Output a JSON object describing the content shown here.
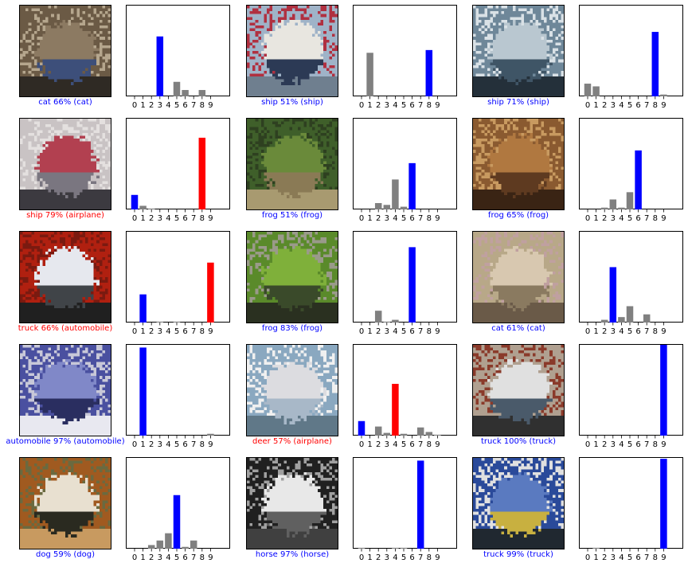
{
  "colors": {
    "correct": "#0000ff",
    "incorrect": "#ff0000",
    "other": "#808080",
    "frame": "#000000"
  },
  "class_ticks": [
    "0",
    "1",
    "2",
    "3",
    "4",
    "5",
    "6",
    "7",
    "8",
    "9"
  ],
  "chart_data": [
    {
      "type": "bar",
      "image": "cat-image",
      "caption": "cat 66% (cat)",
      "correct": true,
      "categories": [
        "0",
        "1",
        "2",
        "3",
        "4",
        "5",
        "6",
        "7",
        "8",
        "9"
      ],
      "values": [
        0.0,
        0.0,
        0.0,
        0.66,
        0.0,
        0.16,
        0.07,
        0.0,
        0.07,
        0.0
      ],
      "predicted": 3,
      "true": 3,
      "ylim": [
        0,
        1
      ]
    },
    {
      "type": "bar",
      "image": "ship-image",
      "caption": "ship 51% (ship)",
      "correct": true,
      "categories": [
        "0",
        "1",
        "2",
        "3",
        "4",
        "5",
        "6",
        "7",
        "8",
        "9"
      ],
      "values": [
        0.0,
        0.48,
        0.0,
        0.0,
        0.0,
        0.0,
        0.0,
        0.0,
        0.51,
        0.0
      ],
      "predicted": 8,
      "true": 8,
      "ylim": [
        0,
        1
      ]
    },
    {
      "type": "bar",
      "image": "boat-image",
      "caption": "ship 71% (ship)",
      "correct": true,
      "categories": [
        "0",
        "1",
        "2",
        "3",
        "4",
        "5",
        "6",
        "7",
        "8",
        "9"
      ],
      "values": [
        0.14,
        0.11,
        0.0,
        0.0,
        0.0,
        0.0,
        0.0,
        0.0,
        0.71,
        0.02
      ],
      "predicted": 8,
      "true": 8,
      "ylim": [
        0,
        1
      ]
    },
    {
      "type": "bar",
      "image": "airplane-book-image",
      "caption": "ship 79% (airplane)",
      "correct": false,
      "categories": [
        "0",
        "1",
        "2",
        "3",
        "4",
        "5",
        "6",
        "7",
        "8",
        "9"
      ],
      "values": [
        0.16,
        0.04,
        0.01,
        0.0,
        0.0,
        0.0,
        0.0,
        0.0,
        0.79,
        0.0
      ],
      "predicted": 8,
      "true": 0,
      "ylim": [
        0,
        1
      ]
    },
    {
      "type": "bar",
      "image": "frog-image",
      "caption": "frog 51% (frog)",
      "correct": true,
      "categories": [
        "0",
        "1",
        "2",
        "3",
        "4",
        "5",
        "6",
        "7",
        "8",
        "9"
      ],
      "values": [
        0.0,
        0.0,
        0.07,
        0.05,
        0.33,
        0.03,
        0.51,
        0.0,
        0.0,
        0.0
      ],
      "predicted": 6,
      "true": 6,
      "ylim": [
        0,
        1
      ]
    },
    {
      "type": "bar",
      "image": "frog-image-2",
      "caption": "frog 65% (frog)",
      "correct": true,
      "categories": [
        "0",
        "1",
        "2",
        "3",
        "4",
        "5",
        "6",
        "7",
        "8",
        "9"
      ],
      "values": [
        0.0,
        0.0,
        0.02,
        0.11,
        0.02,
        0.19,
        0.65,
        0.0,
        0.0,
        0.0
      ],
      "predicted": 6,
      "true": 6,
      "ylim": [
        0,
        1
      ]
    },
    {
      "type": "bar",
      "image": "automobile-image",
      "caption": "truck 66% (automobile)",
      "correct": false,
      "categories": [
        "0",
        "1",
        "2",
        "3",
        "4",
        "5",
        "6",
        "7",
        "8",
        "9"
      ],
      "values": [
        0.0,
        0.31,
        0.0,
        0.01,
        0.0,
        0.01,
        0.0,
        0.0,
        0.0,
        0.66
      ],
      "predicted": 9,
      "true": 1,
      "ylim": [
        0,
        1
      ]
    },
    {
      "type": "bar",
      "image": "frog-image-3",
      "caption": "frog 83% (frog)",
      "correct": true,
      "categories": [
        "0",
        "1",
        "2",
        "3",
        "4",
        "5",
        "6",
        "7",
        "8",
        "9"
      ],
      "values": [
        0.0,
        0.0,
        0.13,
        0.01,
        0.03,
        0.0,
        0.83,
        0.0,
        0.0,
        0.0
      ],
      "predicted": 6,
      "true": 6,
      "ylim": [
        0,
        1
      ]
    },
    {
      "type": "bar",
      "image": "cat-image-2",
      "caption": "cat 61% (cat)",
      "correct": true,
      "categories": [
        "0",
        "1",
        "2",
        "3",
        "4",
        "5",
        "6",
        "7",
        "8",
        "9"
      ],
      "values": [
        0.0,
        0.0,
        0.03,
        0.61,
        0.06,
        0.18,
        0.0,
        0.09,
        0.0,
        0.0
      ],
      "predicted": 3,
      "true": 3,
      "ylim": [
        0,
        1
      ]
    },
    {
      "type": "bar",
      "image": "automobile-image-2",
      "caption": "automobile 97% (automobile)",
      "correct": true,
      "categories": [
        "0",
        "1",
        "2",
        "3",
        "4",
        "5",
        "6",
        "7",
        "8",
        "9"
      ],
      "values": [
        0.0,
        0.97,
        0.0,
        0.0,
        0.0,
        0.0,
        0.0,
        0.0,
        0.0,
        0.02
      ],
      "predicted": 1,
      "true": 1,
      "ylim": [
        0,
        1
      ]
    },
    {
      "type": "bar",
      "image": "airplane-image",
      "caption": "deer 57% (airplane)",
      "correct": false,
      "categories": [
        "0",
        "1",
        "2",
        "3",
        "4",
        "5",
        "6",
        "7",
        "8",
        "9"
      ],
      "values": [
        0.16,
        0.0,
        0.1,
        0.03,
        0.57,
        0.02,
        0.0,
        0.09,
        0.04,
        0.01
      ],
      "predicted": 4,
      "true": 0,
      "ylim": [
        0,
        1
      ]
    },
    {
      "type": "bar",
      "image": "truck-image",
      "caption": "truck 100% (truck)",
      "correct": true,
      "categories": [
        "0",
        "1",
        "2",
        "3",
        "4",
        "5",
        "6",
        "7",
        "8",
        "9"
      ],
      "values": [
        0.0,
        0.0,
        0.0,
        0.0,
        0.0,
        0.0,
        0.0,
        0.0,
        0.0,
        1.0
      ],
      "predicted": 9,
      "true": 9,
      "ylim": [
        0,
        1
      ]
    },
    {
      "type": "bar",
      "image": "dog-image",
      "caption": "dog 59% (dog)",
      "correct": true,
      "categories": [
        "0",
        "1",
        "2",
        "3",
        "4",
        "5",
        "6",
        "7",
        "8",
        "9"
      ],
      "values": [
        0.0,
        0.0,
        0.04,
        0.09,
        0.17,
        0.59,
        0.02,
        0.09,
        0.0,
        0.0
      ],
      "predicted": 5,
      "true": 5,
      "ylim": [
        0,
        1
      ]
    },
    {
      "type": "bar",
      "image": "horse-image",
      "caption": "horse 97% (horse)",
      "correct": true,
      "categories": [
        "0",
        "1",
        "2",
        "3",
        "4",
        "5",
        "6",
        "7",
        "8",
        "9"
      ],
      "values": [
        0.01,
        0.0,
        0.0,
        0.0,
        0.01,
        0.01,
        0.0,
        0.97,
        0.0,
        0.0
      ],
      "predicted": 7,
      "true": 7,
      "ylim": [
        0,
        1
      ]
    },
    {
      "type": "bar",
      "image": "truck-image-2",
      "caption": "truck 99% (truck)",
      "correct": true,
      "categories": [
        "0",
        "1",
        "2",
        "3",
        "4",
        "5",
        "6",
        "7",
        "8",
        "9"
      ],
      "values": [
        0.0,
        0.01,
        0.0,
        0.0,
        0.0,
        0.0,
        0.0,
        0.0,
        0.0,
        0.99
      ],
      "predicted": 9,
      "true": 9,
      "ylim": [
        0,
        1
      ]
    }
  ]
}
